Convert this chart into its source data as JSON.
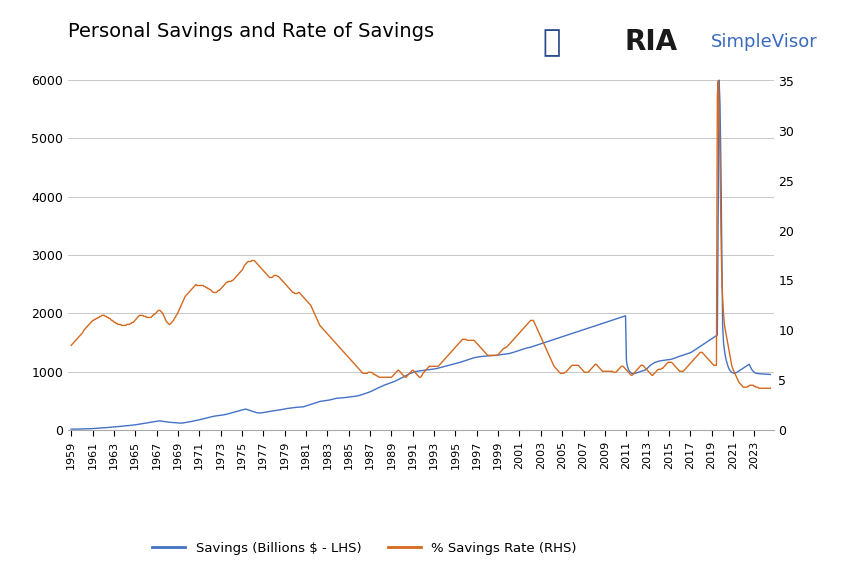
{
  "title": "Personal Savings and Rate of Savings",
  "lhs_label": "Savings (Billions $ - LHS)",
  "rhs_label": "% Savings Rate (RHS)",
  "lhs_color": "#4472c4",
  "rhs_color": "#d4691e",
  "background_color": "#ffffff",
  "grid_color": "#c8c8c8",
  "lhs_ylim": [
    0,
    6500
  ],
  "rhs_ylim": [
    0,
    38.0
  ],
  "lhs_yticks": [
    0,
    1000,
    2000,
    3000,
    4000,
    5000,
    6000
  ],
  "rhs_yticks": [
    0,
    5,
    10,
    15,
    20,
    25,
    30,
    35
  ],
  "x_start_year": 1959,
  "x_end_year": 2024.5,
  "xtick_years": [
    1959,
    1961,
    1963,
    1965,
    1967,
    1969,
    1971,
    1973,
    1975,
    1977,
    1979,
    1981,
    1983,
    1985,
    1987,
    1989,
    1991,
    1993,
    1995,
    1997,
    1999,
    2001,
    2003,
    2005,
    2007,
    2009,
    2011,
    2013,
    2015,
    2017,
    2019,
    2021,
    2023
  ],
  "savings_monthly": [
    17,
    17,
    17,
    18,
    18,
    18,
    19,
    19,
    19,
    20,
    20,
    20,
    21,
    21,
    22,
    22,
    23,
    23,
    24,
    24,
    25,
    25,
    26,
    26,
    27,
    28,
    29,
    30,
    31,
    32,
    33,
    34,
    35,
    36,
    37,
    38,
    39,
    40,
    41,
    43,
    44,
    45,
    47,
    48,
    50,
    51,
    52,
    53,
    55,
    56,
    57,
    58,
    60,
    61,
    62,
    64,
    65,
    67,
    68,
    70,
    72,
    73,
    75,
    76,
    78,
    79,
    81,
    82,
    84,
    85,
    87,
    89,
    91,
    93,
    95,
    97,
    99,
    102,
    105,
    107,
    110,
    112,
    115,
    118,
    120,
    122,
    125,
    127,
    130,
    132,
    135,
    137,
    140,
    142,
    145,
    148,
    150,
    152,
    155,
    157,
    160,
    158,
    156,
    153,
    151,
    148,
    146,
    144,
    142,
    140,
    138,
    136,
    135,
    133,
    132,
    130,
    129,
    128,
    127,
    126,
    125,
    124,
    123,
    122,
    121,
    120,
    122,
    124,
    127,
    130,
    133,
    136,
    138,
    140,
    143,
    146,
    148,
    151,
    154,
    157,
    160,
    163,
    167,
    170,
    173,
    177,
    180,
    184,
    188,
    192,
    196,
    200,
    204,
    207,
    211,
    215,
    218,
    222,
    226,
    229,
    233,
    237,
    240,
    242,
    244,
    246,
    248,
    250,
    252,
    254,
    256,
    258,
    260,
    263,
    266,
    270,
    273,
    277,
    280,
    284,
    288,
    293,
    297,
    302,
    306,
    311,
    315,
    319,
    323,
    327,
    331,
    335,
    339,
    343,
    347,
    352,
    356,
    360,
    360,
    355,
    350,
    345,
    340,
    335,
    330,
    325,
    320,
    315,
    310,
    305,
    300,
    298,
    296,
    295,
    295,
    296,
    298,
    300,
    302,
    305,
    308,
    312,
    315,
    317,
    319,
    321,
    323,
    325,
    327,
    330,
    333,
    335,
    337,
    340,
    343,
    345,
    348,
    350,
    352,
    355,
    358,
    361,
    364,
    367,
    370,
    372,
    374,
    376,
    378,
    380,
    382,
    384,
    386,
    388,
    390,
    392,
    393,
    394,
    395,
    396,
    397,
    398,
    399,
    400,
    405,
    410,
    415,
    420,
    425,
    430,
    435,
    440,
    445,
    450,
    455,
    460,
    465,
    470,
    475,
    480,
    485,
    490,
    493,
    496,
    498,
    500,
    502,
    504,
    506,
    508,
    510,
    512,
    515,
    518,
    522,
    526,
    530,
    534,
    538,
    542,
    545,
    547,
    549,
    550,
    551,
    552,
    553,
    554,
    555,
    556,
    558,
    560,
    562,
    564,
    566,
    568,
    570,
    572,
    574,
    576,
    578,
    580,
    582,
    584,
    586,
    590,
    594,
    598,
    602,
    607,
    612,
    617,
    622,
    627,
    632,
    637,
    642,
    648,
    654,
    660,
    667,
    674,
    681,
    688,
    696,
    703,
    711,
    719,
    726,
    733,
    740,
    747,
    754,
    761,
    767,
    773,
    779,
    785,
    791,
    797,
    802,
    807,
    812,
    817,
    822,
    827,
    833,
    840,
    847,
    854,
    862,
    870,
    878,
    886,
    894,
    902,
    910,
    918,
    926,
    934,
    942,
    950,
    958,
    966,
    972,
    978,
    984,
    990,
    996,
    1000,
    1004,
    1007,
    1010,
    1012,
    1014,
    1016,
    1018,
    1020,
    1022,
    1024,
    1026,
    1028,
    1030,
    1032,
    1034,
    1036,
    1038,
    1040,
    1042,
    1044,
    1046,
    1048,
    1050,
    1053,
    1056,
    1060,
    1064,
    1068,
    1072,
    1076,
    1080,
    1084,
    1088,
    1092,
    1096,
    1100,
    1104,
    1108,
    1112,
    1116,
    1120,
    1124,
    1128,
    1132,
    1136,
    1140,
    1144,
    1148,
    1152,
    1156,
    1160,
    1165,
    1170,
    1175,
    1180,
    1185,
    1190,
    1195,
    1200,
    1205,
    1210,
    1215,
    1220,
    1225,
    1230,
    1235,
    1240,
    1244,
    1247,
    1250,
    1253,
    1255,
    1257,
    1259,
    1261,
    1263,
    1265,
    1267,
    1268,
    1269,
    1270,
    1271,
    1272,
    1273,
    1274,
    1275,
    1276,
    1277,
    1278,
    1279,
    1280,
    1282,
    1284,
    1286,
    1288,
    1290,
    1292,
    1294,
    1296,
    1298,
    1300,
    1302,
    1304,
    1306,
    1308,
    1310,
    1313,
    1317,
    1321,
    1325,
    1329,
    1334,
    1339,
    1344,
    1349,
    1354,
    1360,
    1365,
    1370,
    1375,
    1380,
    1385,
    1390,
    1395,
    1400,
    1405,
    1408,
    1411,
    1414,
    1417,
    1420,
    1425,
    1430,
    1435,
    1440,
    1445,
    1450,
    1455,
    1460,
    1465,
    1470,
    1475,
    1480,
    1485,
    1490,
    1495,
    1500,
    1505,
    1510,
    1515,
    1520,
    1525,
    1530,
    1535,
    1540,
    1545,
    1550,
    1555,
    1560,
    1565,
    1570,
    1575,
    1580,
    1585,
    1590,
    1595,
    1600,
    1605,
    1610,
    1615,
    1620,
    1625,
    1630,
    1635,
    1640,
    1645,
    1650,
    1655,
    1660,
    1665,
    1670,
    1675,
    1680,
    1685,
    1690,
    1695,
    1700,
    1705,
    1710,
    1715,
    1720,
    1725,
    1730,
    1735,
    1740,
    1745,
    1750,
    1755,
    1760,
    1765,
    1770,
    1775,
    1780,
    1785,
    1790,
    1795,
    1800,
    1805,
    1810,
    1815,
    1820,
    1825,
    1830,
    1835,
    1840,
    1845,
    1850,
    1855,
    1860,
    1865,
    1870,
    1875,
    1880,
    1885,
    1890,
    1895,
    1900,
    1905,
    1910,
    1915,
    1920,
    1925,
    1930,
    1935,
    1940,
    1945,
    1950,
    1955,
    1960,
    1200,
    1100,
    1050,
    1020,
    1000,
    985,
    975,
    970,
    968,
    970,
    975,
    980,
    985,
    990,
    995,
    1000,
    1005,
    1010,
    1015,
    1020,
    1025,
    1030,
    1040,
    1050,
    1065,
    1080,
    1095,
    1110,
    1120,
    1130,
    1140,
    1150,
    1160,
    1165,
    1170,
    1175,
    1180,
    1185,
    1188,
    1190,
    1192,
    1194,
    1196,
    1198,
    1200,
    1202,
    1204,
    1206,
    1208,
    1210,
    1213,
    1216,
    1220,
    1225,
    1230,
    1236,
    1242,
    1248,
    1254,
    1260,
    1265,
    1270,
    1275,
    1280,
    1285,
    1290,
    1295,
    1300,
    1305,
    1310,
    1315,
    1320,
    1325,
    1330,
    1340,
    1350,
    1360,
    1370,
    1380,
    1390,
    1400,
    1410,
    1420,
    1430,
    1440,
    1450,
    1460,
    1470,
    1480,
    1490,
    1500,
    1510,
    1520,
    1530,
    1540,
    1550,
    1560,
    1570,
    1580,
    1590,
    1600,
    1610,
    1620,
    1630,
    3700,
    6000,
    5600,
    4600,
    3200,
    1800,
    1500,
    1380,
    1280,
    1200,
    1150,
    1100,
    1060,
    1030,
    1010,
    995,
    985,
    980,
    975,
    980,
    985,
    990,
    1000,
    1010,
    1020,
    1030,
    1040,
    1050,
    1060,
    1070,
    1080,
    1090,
    1100,
    1110,
    1120,
    1130,
    1100,
    1070,
    1040,
    1020,
    1005,
    990,
    980,
    975,
    972,
    970,
    968,
    967,
    966,
    965,
    964,
    963,
    962,
    961,
    960,
    959,
    958,
    957,
    956,
    955
  ],
  "rate_monthly": [
    8.5,
    8.6,
    8.7,
    8.8,
    8.9,
    9.0,
    9.1,
    9.2,
    9.3,
    9.4,
    9.5,
    9.6,
    9.7,
    9.8,
    10.0,
    10.1,
    10.2,
    10.3,
    10.4,
    10.5,
    10.6,
    10.7,
    10.8,
    10.9,
    11.0,
    11.0,
    11.1,
    11.1,
    11.2,
    11.2,
    11.3,
    11.3,
    11.4,
    11.4,
    11.5,
    11.5,
    11.5,
    11.5,
    11.4,
    11.4,
    11.3,
    11.3,
    11.2,
    11.2,
    11.1,
    11.0,
    11.0,
    10.9,
    10.8,
    10.8,
    10.7,
    10.7,
    10.6,
    10.6,
    10.6,
    10.6,
    10.5,
    10.5,
    10.5,
    10.5,
    10.5,
    10.5,
    10.6,
    10.6,
    10.6,
    10.6,
    10.7,
    10.7,
    10.8,
    10.8,
    10.9,
    11.0,
    11.1,
    11.2,
    11.3,
    11.4,
    11.5,
    11.5,
    11.5,
    11.5,
    11.5,
    11.4,
    11.4,
    11.4,
    11.3,
    11.3,
    11.3,
    11.3,
    11.3,
    11.3,
    11.4,
    11.5,
    11.6,
    11.6,
    11.7,
    11.8,
    11.9,
    12.0,
    12.0,
    12.0,
    11.9,
    11.8,
    11.7,
    11.5,
    11.3,
    11.1,
    10.9,
    10.8,
    10.7,
    10.6,
    10.6,
    10.7,
    10.8,
    10.9,
    11.0,
    11.2,
    11.3,
    11.5,
    11.6,
    11.8,
    12.0,
    12.2,
    12.4,
    12.6,
    12.8,
    13.0,
    13.2,
    13.4,
    13.5,
    13.6,
    13.7,
    13.8,
    13.9,
    14.0,
    14.1,
    14.2,
    14.3,
    14.4,
    14.5,
    14.6,
    14.5,
    14.5,
    14.5,
    14.5,
    14.5,
    14.5,
    14.5,
    14.5,
    14.4,
    14.4,
    14.3,
    14.3,
    14.2,
    14.2,
    14.1,
    14.1,
    14.0,
    13.9,
    13.8,
    13.8,
    13.8,
    13.8,
    13.8,
    13.9,
    14.0,
    14.0,
    14.1,
    14.2,
    14.3,
    14.4,
    14.5,
    14.6,
    14.7,
    14.8,
    14.8,
    14.9,
    14.9,
    14.9,
    14.9,
    15.0,
    15.0,
    15.1,
    15.2,
    15.3,
    15.4,
    15.5,
    15.6,
    15.7,
    15.8,
    15.9,
    16.0,
    16.1,
    16.3,
    16.5,
    16.6,
    16.7,
    16.8,
    16.9,
    16.9,
    16.9,
    16.9,
    17.0,
    17.0,
    17.0,
    17.0,
    16.9,
    16.8,
    16.7,
    16.6,
    16.5,
    16.4,
    16.3,
    16.2,
    16.1,
    16.0,
    15.9,
    15.8,
    15.7,
    15.6,
    15.5,
    15.4,
    15.3,
    15.3,
    15.3,
    15.3,
    15.4,
    15.5,
    15.5,
    15.5,
    15.5,
    15.4,
    15.4,
    15.3,
    15.2,
    15.1,
    15.0,
    14.9,
    14.8,
    14.7,
    14.6,
    14.5,
    14.4,
    14.3,
    14.2,
    14.1,
    14.0,
    13.9,
    13.8,
    13.8,
    13.7,
    13.7,
    13.7,
    13.7,
    13.8,
    13.8,
    13.7,
    13.6,
    13.5,
    13.4,
    13.3,
    13.2,
    13.1,
    13.0,
    12.9,
    12.8,
    12.7,
    12.6,
    12.5,
    12.3,
    12.1,
    11.9,
    11.7,
    11.5,
    11.3,
    11.1,
    10.9,
    10.7,
    10.5,
    10.4,
    10.3,
    10.2,
    10.1,
    10.0,
    9.9,
    9.8,
    9.7,
    9.6,
    9.5,
    9.4,
    9.3,
    9.2,
    9.1,
    9.0,
    8.9,
    8.8,
    8.7,
    8.6,
    8.5,
    8.4,
    8.3,
    8.2,
    8.1,
    8.0,
    7.9,
    7.8,
    7.7,
    7.6,
    7.5,
    7.4,
    7.3,
    7.2,
    7.1,
    7.0,
    6.9,
    6.8,
    6.7,
    6.6,
    6.5,
    6.4,
    6.3,
    6.2,
    6.1,
    6.0,
    5.9,
    5.8,
    5.7,
    5.7,
    5.7,
    5.7,
    5.7,
    5.7,
    5.8,
    5.8,
    5.8,
    5.8,
    5.8,
    5.7,
    5.6,
    5.6,
    5.5,
    5.5,
    5.4,
    5.4,
    5.3,
    5.3,
    5.3,
    5.3,
    5.3,
    5.3,
    5.3,
    5.3,
    5.3,
    5.3,
    5.3,
    5.3,
    5.3,
    5.3,
    5.3,
    5.4,
    5.5,
    5.6,
    5.7,
    5.8,
    5.9,
    6.0,
    6.0,
    5.9,
    5.8,
    5.7,
    5.6,
    5.5,
    5.4,
    5.3,
    5.3,
    5.4,
    5.5,
    5.6,
    5.7,
    5.8,
    5.9,
    6.0,
    6.0,
    5.9,
    5.8,
    5.7,
    5.6,
    5.5,
    5.4,
    5.3,
    5.3,
    5.4,
    5.5,
    5.7,
    5.8,
    5.9,
    6.0,
    6.1,
    6.2,
    6.3,
    6.4,
    6.4,
    6.4,
    6.4,
    6.4,
    6.4,
    6.4,
    6.4,
    6.4,
    6.4,
    6.4,
    6.5,
    6.6,
    6.7,
    6.8,
    6.9,
    7.0,
    7.1,
    7.2,
    7.3,
    7.4,
    7.5,
    7.6,
    7.7,
    7.8,
    7.9,
    8.0,
    8.1,
    8.2,
    8.3,
    8.4,
    8.5,
    8.6,
    8.7,
    8.8,
    8.9,
    9.0,
    9.1,
    9.1,
    9.1,
    9.1,
    9.1,
    9.0,
    9.0,
    9.0,
    9.0,
    9.0,
    9.0,
    9.0,
    9.0,
    9.0,
    8.9,
    8.8,
    8.7,
    8.6,
    8.5,
    8.4,
    8.3,
    8.2,
    8.1,
    8.0,
    7.9,
    7.8,
    7.7,
    7.6,
    7.5,
    7.5,
    7.5,
    7.5,
    7.5,
    7.5,
    7.5,
    7.5,
    7.5,
    7.5,
    7.5,
    7.5,
    7.6,
    7.7,
    7.8,
    7.9,
    8.0,
    8.1,
    8.2,
    8.2,
    8.3,
    8.3,
    8.4,
    8.5,
    8.6,
    8.7,
    8.8,
    8.9,
    9.0,
    9.1,
    9.2,
    9.3,
    9.4,
    9.5,
    9.6,
    9.7,
    9.8,
    9.9,
    10.0,
    10.1,
    10.2,
    10.3,
    10.4,
    10.5,
    10.6,
    10.7,
    10.8,
    10.9,
    11.0,
    11.0,
    11.0,
    11.0,
    10.8,
    10.6,
    10.4,
    10.2,
    10.0,
    9.8,
    9.6,
    9.4,
    9.2,
    9.0,
    8.8,
    8.6,
    8.4,
    8.2,
    8.0,
    7.8,
    7.6,
    7.4,
    7.2,
    7.0,
    6.8,
    6.6,
    6.4,
    6.3,
    6.2,
    6.1,
    6.0,
    5.9,
    5.8,
    5.7,
    5.7,
    5.7,
    5.7,
    5.7,
    5.8,
    5.8,
    5.9,
    6.0,
    6.1,
    6.2,
    6.3,
    6.4,
    6.5,
    6.5,
    6.5,
    6.5,
    6.5,
    6.5,
    6.5,
    6.5,
    6.4,
    6.3,
    6.2,
    6.1,
    6.0,
    5.9,
    5.8,
    5.8,
    5.8,
    5.8,
    5.8,
    5.9,
    6.0,
    6.1,
    6.2,
    6.3,
    6.4,
    6.5,
    6.6,
    6.6,
    6.5,
    6.4,
    6.3,
    6.2,
    6.1,
    6.0,
    5.9,
    5.9,
    5.9,
    5.9,
    5.9,
    5.9,
    5.9,
    5.9,
    5.9,
    5.9,
    5.9,
    5.9,
    5.8,
    5.8,
    5.8,
    5.8,
    5.9,
    6.0,
    6.1,
    6.2,
    6.3,
    6.4,
    6.4,
    6.4,
    6.3,
    6.2,
    6.1,
    6.0,
    5.9,
    5.8,
    5.7,
    5.6,
    5.5,
    5.5,
    5.6,
    5.7,
    5.8,
    5.9,
    6.0,
    6.1,
    6.2,
    6.3,
    6.4,
    6.5,
    6.5,
    6.5,
    6.4,
    6.3,
    6.2,
    6.1,
    6.0,
    5.9,
    5.8,
    5.7,
    5.6,
    5.5,
    5.5,
    5.6,
    5.7,
    5.8,
    5.9,
    6.0,
    6.1,
    6.1,
    6.1,
    6.1,
    6.2,
    6.2,
    6.3,
    6.4,
    6.5,
    6.6,
    6.7,
    6.8,
    6.8,
    6.8,
    6.8,
    6.8,
    6.7,
    6.6,
    6.5,
    6.4,
    6.3,
    6.2,
    6.1,
    6.0,
    5.9,
    5.9,
    5.9,
    5.9,
    5.9,
    6.0,
    6.1,
    6.2,
    6.3,
    6.4,
    6.5,
    6.6,
    6.7,
    6.8,
    6.9,
    7.0,
    7.1,
    7.2,
    7.3,
    7.4,
    7.5,
    7.6,
    7.7,
    7.8,
    7.8,
    7.8,
    7.7,
    7.6,
    7.5,
    7.4,
    7.3,
    7.2,
    7.1,
    7.0,
    6.9,
    6.8,
    6.7,
    6.6,
    6.5,
    6.5,
    6.5,
    6.5,
    33.5,
    35.0,
    32.0,
    27.0,
    20.0,
    15.0,
    13.0,
    11.5,
    10.5,
    10.0,
    9.5,
    9.0,
    8.5,
    8.0,
    7.5,
    7.0,
    6.5,
    6.2,
    6.0,
    5.8,
    5.6,
    5.4,
    5.2,
    5.0,
    4.8,
    4.7,
    4.6,
    4.5,
    4.4,
    4.3,
    4.3,
    4.3,
    4.3,
    4.3,
    4.4,
    4.4,
    4.5,
    4.5,
    4.5,
    4.5,
    4.5,
    4.4,
    4.4,
    4.3,
    4.3,
    4.3,
    4.2,
    4.2,
    4.2,
    4.2,
    4.2,
    4.2,
    4.2,
    4.2,
    4.2,
    4.2,
    4.2,
    4.2,
    4.2,
    4.2
  ]
}
